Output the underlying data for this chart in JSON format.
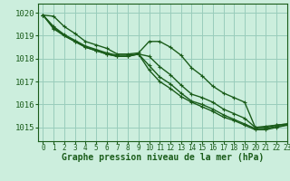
{
  "bg_color": "#cceedd",
  "grid_color": "#99ccbb",
  "line_color": "#1a5c1a",
  "xlabel": "Graphe pression niveau de la mer (hPa)",
  "xlim": [
    -0.5,
    23
  ],
  "ylim": [
    1014.4,
    1020.4
  ],
  "yticks": [
    1015,
    1016,
    1017,
    1018,
    1019,
    1020
  ],
  "xticks": [
    0,
    1,
    2,
    3,
    4,
    5,
    6,
    7,
    8,
    9,
    10,
    11,
    12,
    13,
    14,
    15,
    16,
    17,
    18,
    19,
    20,
    21,
    22,
    23
  ],
  "series": [
    {
      "y": [
        1019.9,
        1019.85,
        1019.4,
        1019.1,
        1018.75,
        1018.6,
        1018.45,
        1018.2,
        1018.2,
        1018.25,
        1018.75,
        1018.75,
        1018.5,
        1018.15,
        1017.6,
        1017.25,
        1016.8,
        1016.5,
        1016.3,
        1016.1,
        1015.0,
        1015.05,
        1015.1,
        1015.15
      ],
      "marker": true,
      "lw": 1.0
    },
    {
      "y": [
        1019.9,
        1019.4,
        1019.05,
        1018.8,
        1018.55,
        1018.4,
        1018.25,
        1018.15,
        1018.15,
        1018.2,
        1018.1,
        1017.65,
        1017.3,
        1016.85,
        1016.45,
        1016.3,
        1016.1,
        1015.8,
        1015.6,
        1015.4,
        1015.0,
        1015.0,
        1015.1,
        1015.15
      ],
      "marker": true,
      "lw": 1.0
    },
    {
      "y": [
        1019.9,
        1019.35,
        1019.0,
        1018.75,
        1018.5,
        1018.35,
        1018.2,
        1018.1,
        1018.1,
        1018.2,
        1017.7,
        1017.2,
        1016.9,
        1016.5,
        1016.15,
        1016.0,
        1015.8,
        1015.55,
        1015.35,
        1015.15,
        1014.95,
        1014.95,
        1015.05,
        1015.1
      ],
      "marker": true,
      "lw": 1.0
    },
    {
      "y": [
        1019.9,
        1019.3,
        1019.0,
        1018.75,
        1018.5,
        1018.35,
        1018.2,
        1018.1,
        1018.1,
        1018.2,
        1017.5,
        1017.0,
        1016.7,
        1016.35,
        1016.1,
        1015.9,
        1015.7,
        1015.45,
        1015.3,
        1015.1,
        1014.9,
        1014.9,
        1015.0,
        1015.1
      ],
      "marker": true,
      "lw": 1.0
    }
  ]
}
